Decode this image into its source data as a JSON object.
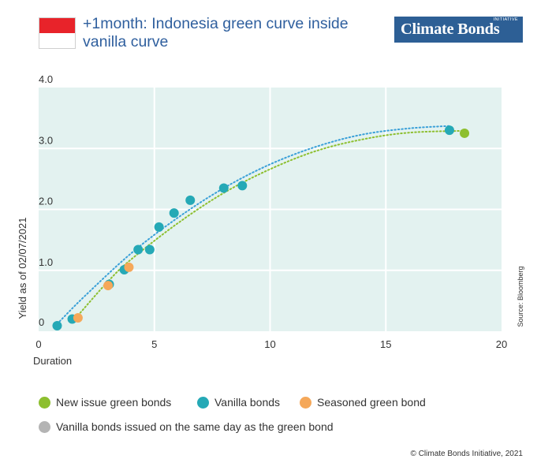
{
  "header": {
    "title": "+1month: Indonesia green curve inside vanilla curve",
    "logo_text": "Climate Bonds",
    "logo_subtext": "INITIATIVE"
  },
  "colors": {
    "flag_red": "#e8232a",
    "flag_white": "#ffffff",
    "plot_background": "#e3f2f0",
    "grid": "#ffffff",
    "new_issue_green": "#8dbf2f",
    "vanilla": "#25a9b6",
    "seasoned_green": "#f5a85a",
    "same_day_vanilla": "#b4b4b4",
    "vanilla_trend": "#3aa0d8",
    "green_trend": "#8dbf2f",
    "title_blue": "#2f5f9e",
    "logo_blue": "#2d5f95"
  },
  "chart_data": {
    "type": "scatter",
    "title": "+1month: Indonesia green curve inside vanilla curve",
    "xlabel": "Duration",
    "ylabel": "Yield as of 02/07/2021",
    "source": "Source: Bloomberg",
    "xlim": [
      0,
      20
    ],
    "ylim": [
      0,
      4.0
    ],
    "x_ticks": [
      "0",
      "5",
      "10",
      "15",
      "20"
    ],
    "y_ticks": [
      "0",
      "1.0",
      "2.0",
      "3.0",
      "4.0"
    ],
    "grid": true,
    "legend_position": "bottom",
    "series": [
      {
        "name": "New issue green bonds",
        "color": "#8dbf2f",
        "points": [
          {
            "x": 18.4,
            "y": 3.25
          }
        ]
      },
      {
        "name": "Vanilla bonds",
        "color": "#25a9b6",
        "points": [
          {
            "x": 0.8,
            "y": 0.09
          },
          {
            "x": 1.45,
            "y": 0.2
          },
          {
            "x": 3.05,
            "y": 0.77
          },
          {
            "x": 3.7,
            "y": 1.01
          },
          {
            "x": 4.3,
            "y": 1.34
          },
          {
            "x": 4.8,
            "y": 1.34
          },
          {
            "x": 5.2,
            "y": 1.71
          },
          {
            "x": 5.85,
            "y": 1.94
          },
          {
            "x": 6.55,
            "y": 2.15
          },
          {
            "x": 8.0,
            "y": 2.35
          },
          {
            "x": 8.8,
            "y": 2.39
          },
          {
            "x": 17.75,
            "y": 3.3
          }
        ]
      },
      {
        "name": "Seasoned green bond",
        "color": "#f5a85a",
        "points": [
          {
            "x": 1.7,
            "y": 0.22
          },
          {
            "x": 3.0,
            "y": 0.75
          },
          {
            "x": 3.9,
            "y": 1.05
          }
        ]
      },
      {
        "name": "Vanilla bonds issued on the same day as the green bond",
        "color": "#b4b4b4",
        "points": []
      }
    ],
    "trendlines": [
      {
        "color": "#3aa0d8",
        "style": "dotted",
        "points": [
          {
            "x": 0.8,
            "y": 0.12
          },
          {
            "x": 2,
            "y": 0.58
          },
          {
            "x": 4,
            "y": 1.28
          },
          {
            "x": 6,
            "y": 1.86
          },
          {
            "x": 8,
            "y": 2.35
          },
          {
            "x": 10,
            "y": 2.74
          },
          {
            "x": 12,
            "y": 3.03
          },
          {
            "x": 14,
            "y": 3.23
          },
          {
            "x": 16,
            "y": 3.33
          },
          {
            "x": 17.75,
            "y": 3.37
          }
        ]
      },
      {
        "color": "#8dbf2f",
        "style": "dotted",
        "points": [
          {
            "x": 1.7,
            "y": 0.26
          },
          {
            "x": 3,
            "y": 0.82
          },
          {
            "x": 4,
            "y": 1.18
          },
          {
            "x": 6,
            "y": 1.77
          },
          {
            "x": 8,
            "y": 2.27
          },
          {
            "x": 10,
            "y": 2.66
          },
          {
            "x": 12,
            "y": 2.96
          },
          {
            "x": 14,
            "y": 3.15
          },
          {
            "x": 16,
            "y": 3.26
          },
          {
            "x": 18.4,
            "y": 3.29
          }
        ]
      }
    ]
  },
  "legend": {
    "items": [
      {
        "label": "New issue green bonds",
        "color": "#8dbf2f"
      },
      {
        "label": "Vanilla bonds",
        "color": "#25a9b6"
      },
      {
        "label": "Seasoned green bond",
        "color": "#f5a85a"
      },
      {
        "label": "Vanilla bonds issued on the same day as the green bond",
        "color": "#b4b4b4"
      }
    ]
  },
  "footer": {
    "copyright": "© Climate Bonds Initiative, 2021"
  }
}
